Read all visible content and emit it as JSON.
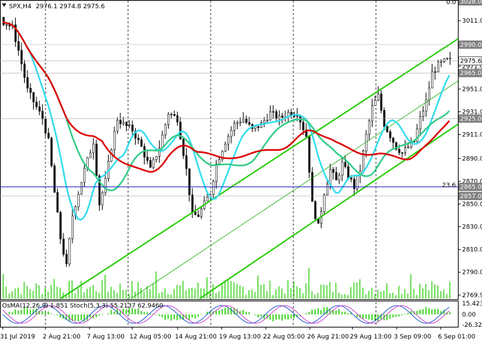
{
  "header": {
    "symbol": "SPX,H4",
    "ohlc": "2976.1 2974.8 2975.6",
    "triangle_icon": "down-triangle-icon"
  },
  "price_axis": {
    "labels": [
      "3011.0",
      "2990.0",
      "2971.0",
      "2951.0",
      "2931.0",
      "2911.0",
      "2890.0",
      "2870.0",
      "2850.0",
      "2830.0",
      "2810.0",
      "2790.0",
      "2769.9"
    ],
    "box_levels": [
      {
        "value": "3028.0",
        "color": "#808080"
      },
      {
        "value": "2990.0",
        "color": "#808080"
      },
      {
        "value": "2975.6",
        "color": "#ffffff",
        "text_color": "#000000"
      },
      {
        "value": "2965.0",
        "color": "#808080"
      },
      {
        "value": "2925.0",
        "color": "#808080"
      },
      {
        "value": "2865.0",
        "color": "#808080"
      },
      {
        "value": "2857.0",
        "color": "#808080"
      }
    ],
    "top_value": "0.0",
    "fib_label": "23.6"
  },
  "time_axis": {
    "labels": [
      "31 Jul 2019",
      "2 Aug 21:00",
      "7 Aug 13:00",
      "12 Aug 05:00",
      "14 Aug 21:00",
      "19 Aug 13:00",
      "22 Aug 05:00",
      "26 Aug 21:00",
      "29 Aug 13:00",
      "3 Sep 09:00",
      "6 Sep 01:00"
    ]
  },
  "indicator": {
    "label": "OsMA(12,26,9) 1.851  Stoch(5,3,3) 55.2137 62.9460",
    "axis_labels": [
      "15.423",
      "0.00",
      "-26.329"
    ]
  },
  "colors": {
    "ma_cyan": "#33ddee",
    "ma_red": "#dd0000",
    "ma_green": "#33cc88",
    "channel": "#22cc00",
    "hline": "#2222cc",
    "candle": "#000000",
    "volume": "#22cc00",
    "osma": "#22cc00",
    "stoch_main": "#2255cc",
    "stoch_signal": "#cc44cc"
  },
  "chart_data": {
    "type": "candlestick",
    "symbol": "SPX",
    "timeframe": "H4",
    "ylim": [
      2769.9,
      3028.0
    ],
    "levels": [
      3028.0,
      2990.0,
      2965.0,
      2925.0,
      2865.0,
      2857.0
    ],
    "fibonacci": {
      "23.6": 2865.0
    },
    "last_price": 2975.6,
    "close_path": [
      [
        0,
        3010
      ],
      [
        3,
        3005
      ],
      [
        5,
        2985
      ],
      [
        8,
        2950
      ],
      [
        10,
        2940
      ],
      [
        13,
        2925
      ],
      [
        15,
        2905
      ],
      [
        17,
        2860
      ],
      [
        19,
        2820
      ],
      [
        21,
        2795
      ],
      [
        23,
        2840
      ],
      [
        25,
        2860
      ],
      [
        27,
        2880
      ],
      [
        30,
        2905
      ],
      [
        32,
        2850
      ],
      [
        34,
        2870
      ],
      [
        36,
        2900
      ],
      [
        38,
        2925
      ],
      [
        40,
        2920
      ],
      [
        43,
        2915
      ],
      [
        46,
        2900
      ],
      [
        49,
        2880
      ],
      [
        52,
        2900
      ],
      [
        55,
        2930
      ],
      [
        58,
        2925
      ],
      [
        61,
        2880
      ],
      [
        63,
        2840
      ],
      [
        65,
        2840
      ],
      [
        67,
        2850
      ],
      [
        69,
        2860
      ],
      [
        71,
        2885
      ],
      [
        74,
        2905
      ],
      [
        77,
        2920
      ],
      [
        80,
        2925
      ],
      [
        83,
        2915
      ],
      [
        86,
        2920
      ],
      [
        89,
        2930
      ],
      [
        92,
        2925
      ],
      [
        95,
        2930
      ],
      [
        98,
        2930
      ],
      [
        101,
        2910
      ],
      [
        103,
        2850
      ],
      [
        105,
        2830
      ],
      [
        107,
        2860
      ],
      [
        109,
        2880
      ],
      [
        111,
        2870
      ],
      [
        113,
        2885
      ],
      [
        115,
        2875
      ],
      [
        117,
        2865
      ],
      [
        119,
        2880
      ],
      [
        121,
        2910
      ],
      [
        123,
        2935
      ],
      [
        125,
        2945
      ],
      [
        127,
        2920
      ],
      [
        129,
        2910
      ],
      [
        131,
        2900
      ],
      [
        133,
        2895
      ],
      [
        135,
        2900
      ],
      [
        137,
        2905
      ],
      [
        139,
        2925
      ],
      [
        141,
        2940
      ],
      [
        143,
        2965
      ],
      [
        145,
        2972
      ],
      [
        147,
        2975
      ],
      [
        148,
        2976
      ]
    ]
  }
}
